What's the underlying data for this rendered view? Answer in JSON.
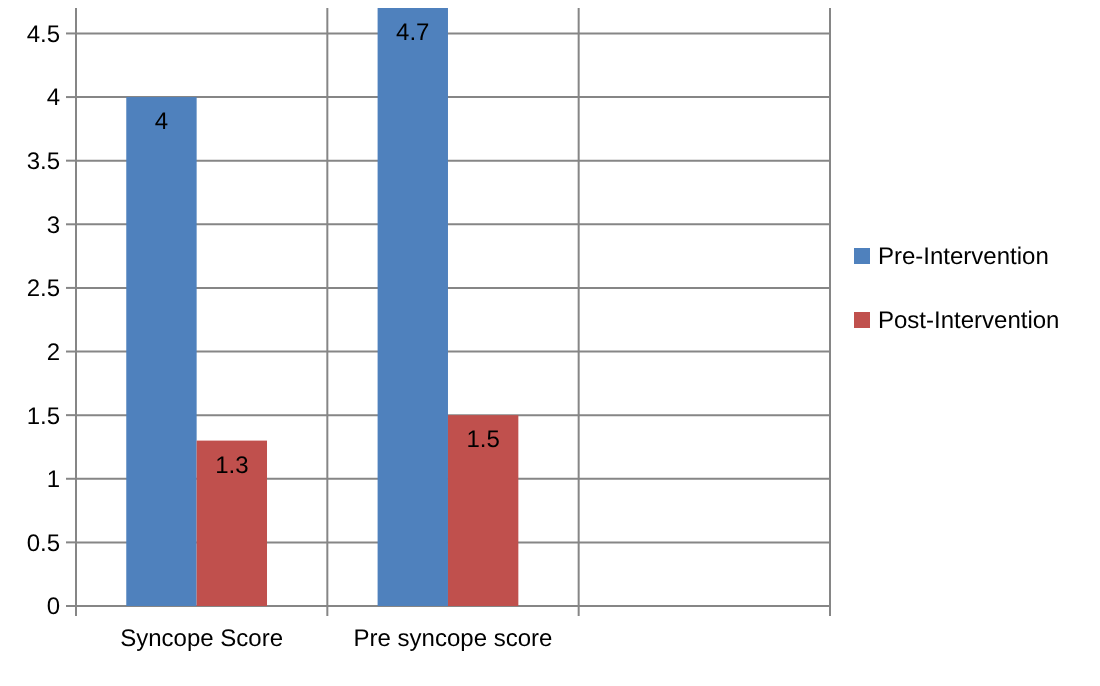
{
  "chart_data": {
    "type": "bar",
    "categories": [
      "Syncope Score",
      "Pre syncope score",
      null
    ],
    "series": [
      {
        "name": "Pre-Intervention",
        "color": "#4f81bd",
        "values": [
          4,
          4.7,
          null
        ]
      },
      {
        "name": "Post-Intervention",
        "color": "#c0504d",
        "values": [
          1.3,
          1.5,
          null
        ]
      }
    ],
    "ylim": [
      0,
      4.7
    ],
    "yticks": [
      0,
      0.5,
      1,
      1.5,
      2,
      2.5,
      3,
      3.5,
      4,
      4.5
    ],
    "grid": true,
    "data_labels": true,
    "legend": "right"
  }
}
